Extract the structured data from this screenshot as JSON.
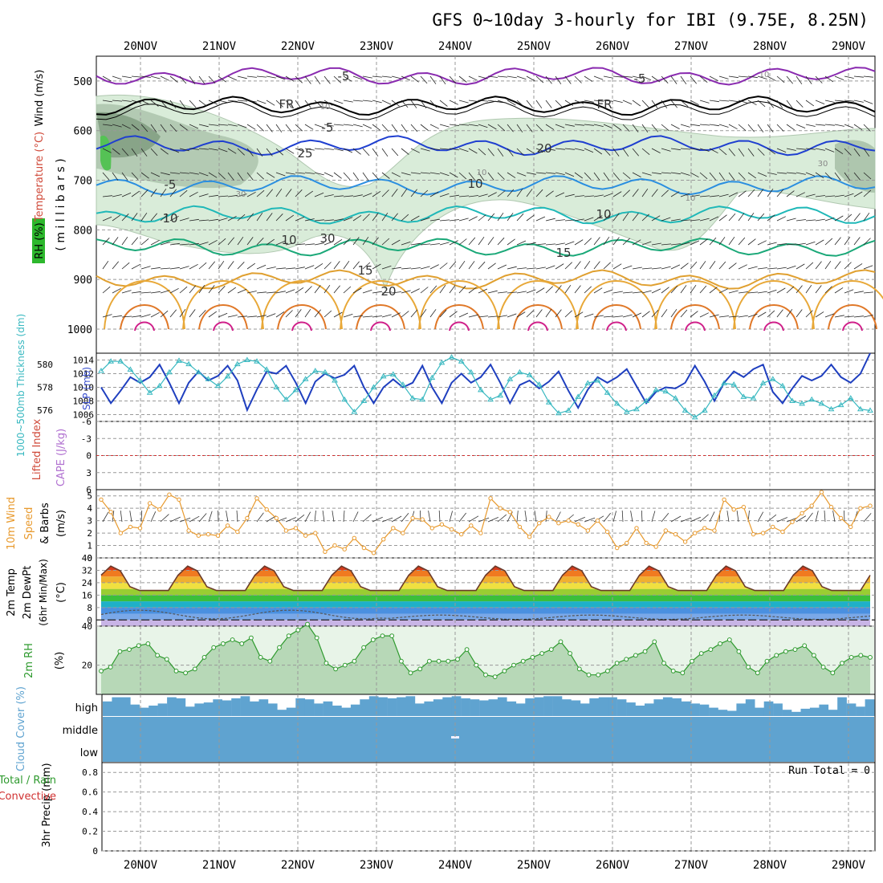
{
  "title": "GFS 0~10day 3-hourly for IBI (9.75E, 8.25N)",
  "date_labels": [
    "20NOV",
    "21NOV",
    "22NOV",
    "23NOV",
    "24NOV",
    "25NOV",
    "26NOV",
    "27NOV",
    "28NOV",
    "29NOV"
  ],
  "colors": {
    "grid": "#999999",
    "rh_fill_light": "#d9ecd9",
    "rh_fill_mid": "#a9c2a9",
    "rh_fill_dark": "#7d9a7d",
    "thickness": "#1f3fbf",
    "slp": "#38b8c0",
    "wind10": "#e89a2e",
    "rh2m": "#2e9a2e",
    "cloud": "#5fa3d0"
  },
  "chart_data": [
    {
      "id": "upper-air",
      "type": "contour",
      "ylabel_parts": [
        "RH (%)",
        "Temperature (°C)",
        "Wind (m/s)"
      ],
      "ylabel_units": "( m i l l i b a r s )",
      "yticks": [
        "500",
        "600",
        "700",
        "800",
        "900",
        "1000"
      ],
      "ylim": [
        1000,
        450
      ],
      "contour_labels": [
        "-5",
        "-5",
        "FR",
        "FR",
        "-5",
        "-5",
        "10",
        "10",
        "10",
        "10",
        "15",
        "15",
        "20",
        "20",
        "25",
        "30",
        "30",
        "10",
        "10",
        "10",
        "30",
        "10"
      ],
      "isotherms": [
        {
          "label": "-5",
          "level_mb": 490
        },
        {
          "label": "FR",
          "level_mb": 550
        },
        {
          "label": "5",
          "level_mb": 630
        },
        {
          "label": "10",
          "level_mb": 710
        },
        {
          "label": "15",
          "level_mb": 770
        },
        {
          "label": "20",
          "level_mb": 835
        },
        {
          "label": "25",
          "level_mb": 900
        }
      ]
    },
    {
      "id": "thickness-slp",
      "type": "line",
      "ylabel_left": "1000~500mb Thickness (dm)",
      "ylabel_right": "SLP (mb)",
      "left_ticks": [
        "580",
        "578",
        "576"
      ],
      "right_ticks": [
        "1014",
        "1012",
        "1010",
        "1008",
        "1006"
      ],
      "thickness_ylim": [
        575,
        581
      ],
      "slp_ylim": [
        1005,
        1015
      ],
      "thickness": [
        578.0,
        576.6,
        577.7,
        578.9,
        578.4,
        578.9,
        580.0,
        578.4,
        576.6,
        578.4,
        579.4,
        578.6,
        579.0,
        579.9,
        578.6,
        576.0,
        577.8,
        579.4,
        579.2,
        579.9,
        578.4,
        576.6,
        578.5,
        579.2,
        578.8,
        579.1,
        579.9,
        578.0,
        576.6,
        578.0,
        578.7,
        578.0,
        578.4,
        579.9,
        578.0,
        576.6,
        578.4,
        579.2,
        578.4,
        578.9,
        580.0,
        578.4,
        576.6,
        578.2,
        578.6,
        577.9,
        578.5,
        579.4,
        577.7,
        576.2,
        577.8,
        578.9,
        578.4,
        578.9,
        579.6,
        578.1,
        576.6,
        577.6,
        578.0,
        577.9,
        578.4,
        579.9,
        578.5,
        576.8,
        578.4,
        579.4,
        578.9,
        579.6,
        580.0,
        577.6,
        576.6,
        577.9,
        579.0,
        578.6,
        579.0,
        580.0,
        578.9,
        578.4,
        579.2,
        581.0
      ],
      "slp": [
        1012.4,
        1013.8,
        1013.8,
        1012.6,
        1011.0,
        1009.2,
        1010.2,
        1012.2,
        1013.9,
        1013.4,
        1012.2,
        1011.2,
        1010.2,
        1011.6,
        1013.4,
        1014.0,
        1013.8,
        1012.6,
        1010.0,
        1008.2,
        1009.6,
        1011.2,
        1012.4,
        1012.2,
        1011.0,
        1008.2,
        1006.4,
        1008.0,
        1010.0,
        1011.6,
        1011.9,
        1010.4,
        1008.4,
        1008.2,
        1011.4,
        1013.6,
        1014.4,
        1013.8,
        1012.2,
        1009.6,
        1008.2,
        1008.8,
        1011.2,
        1012.2,
        1011.8,
        1010.4,
        1007.8,
        1006.2,
        1006.6,
        1008.6,
        1010.6,
        1011.0,
        1009.2,
        1007.6,
        1006.4,
        1006.8,
        1008.0,
        1009.6,
        1009.4,
        1008.4,
        1006.6,
        1005.6,
        1006.6,
        1008.8,
        1010.6,
        1010.4,
        1008.6,
        1008.4,
        1010.6,
        1011.2,
        1010.2,
        1008.0,
        1007.6,
        1008.2,
        1007.6,
        1006.8,
        1007.4,
        1008.4,
        1006.8,
        1006.6
      ]
    },
    {
      "id": "li-cape",
      "type": "line",
      "ylabel_parts": [
        "Lifted Index",
        "CAPE (J/kg)"
      ],
      "yticks": [
        "-6",
        "-3",
        "0",
        "3",
        "6"
      ],
      "ylim": [
        6,
        -6
      ],
      "lifted_index_zero": 0
    },
    {
      "id": "wind10m",
      "type": "line",
      "ylabel_parts": [
        "10m Wind",
        "Speed",
        "& Barbs",
        "(m/s)"
      ],
      "yticks": [
        "5",
        "4",
        "3",
        "2",
        "1",
        "0"
      ],
      "ylim": [
        0,
        5.5
      ],
      "speed": [
        4.7,
        3.7,
        2.0,
        2.5,
        2.4,
        4.4,
        3.9,
        5.1,
        4.7,
        2.2,
        1.8,
        1.9,
        1.8,
        2.6,
        2.1,
        3.2,
        4.8,
        3.9,
        3.2,
        2.2,
        2.4,
        1.8,
        2.0,
        0.5,
        1.0,
        0.7,
        1.6,
        0.8,
        0.4,
        1.5,
        2.4,
        2.0,
        3.2,
        3.1,
        2.4,
        2.7,
        2.3,
        1.9,
        2.6,
        2.0,
        4.8,
        4.0,
        3.7,
        2.5,
        1.7,
        2.8,
        3.3,
        2.8,
        3.0,
        2.7,
        2.2,
        3.0,
        2.1,
        0.8,
        1.2,
        2.4,
        1.2,
        0.9,
        2.2,
        1.9,
        1.3,
        2.0,
        2.4,
        2.2,
        4.7,
        3.9,
        4.1,
        1.9,
        2.0,
        2.5,
        2.1,
        2.9,
        3.6,
        4.2,
        5.3,
        4.1,
        3.2,
        2.5,
        4.0,
        4.2
      ]
    },
    {
      "id": "temp2m",
      "type": "area",
      "ylabel_parts": [
        "2m Temp",
        "2m DewPt",
        "(6hr Min/Max)",
        "(°C)"
      ],
      "yticks": [
        "40",
        "32",
        "24",
        "16",
        "8",
        "0"
      ],
      "ylim": [
        -4,
        40
      ],
      "temp_min": 19,
      "temp_max": 36,
      "dewpoint_range": [
        0,
        7
      ]
    },
    {
      "id": "rh2m",
      "type": "area",
      "ylabel_parts": [
        "2m RH",
        "(%)"
      ],
      "yticks": [
        "40",
        "20"
      ],
      "ylim": [
        5,
        40
      ],
      "rh": [
        17,
        19,
        27,
        28,
        30,
        31,
        25,
        23,
        17,
        16,
        18,
        24,
        29,
        31,
        33,
        31,
        34,
        24,
        22,
        29,
        35,
        38,
        41,
        34,
        21,
        18,
        20,
        22,
        29,
        33,
        35,
        35,
        22,
        16,
        18,
        22,
        22,
        22,
        23,
        28,
        20,
        15,
        14,
        17,
        20,
        22,
        24,
        26,
        28,
        32,
        26,
        18,
        15,
        15,
        17,
        21,
        23,
        25,
        27,
        32,
        21,
        17,
        16,
        22,
        26,
        28,
        31,
        33,
        27,
        19,
        16,
        22,
        25,
        27,
        28,
        30,
        25,
        19,
        16,
        21,
        24,
        25,
        24
      ]
    },
    {
      "id": "cloud",
      "type": "bar",
      "ylabel": "Cloud Cover (%)",
      "level_labels": [
        "high",
        "middle",
        "low"
      ],
      "high_cover": [
        70,
        90,
        90,
        55,
        40,
        50,
        60,
        90,
        85,
        45,
        60,
        65,
        80,
        75,
        85,
        95,
        70,
        80,
        60,
        30,
        40,
        85,
        80,
        60,
        70,
        50,
        40,
        55,
        80,
        95,
        90,
        85,
        90,
        95,
        60,
        70,
        80,
        90,
        95,
        85,
        80,
        75,
        80,
        90,
        70,
        60,
        85,
        90,
        95,
        95,
        80,
        75,
        60,
        85,
        90,
        90,
        80,
        65,
        50,
        60,
        80,
        90,
        85,
        70,
        60,
        55,
        40,
        30,
        25,
        60,
        80,
        40,
        70,
        60,
        30,
        20,
        35,
        40,
        55,
        30,
        90,
        60,
        45,
        80
      ]
    },
    {
      "id": "precip",
      "type": "bar",
      "ylabel_parts": [
        "3hr Precip (mm)",
        "Total / Rain",
        "Convective"
      ],
      "yticks": [
        "0.8",
        "0.6",
        "0.4",
        "0.2",
        "0"
      ],
      "ylim": [
        0,
        0.9
      ],
      "run_total": "Run Total = 0",
      "values": []
    }
  ]
}
